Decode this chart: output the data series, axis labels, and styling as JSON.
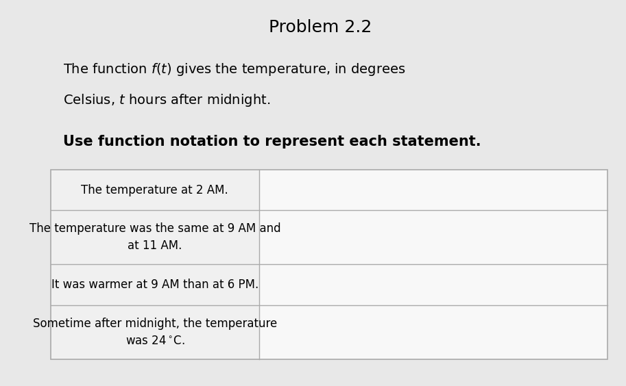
{
  "title": "Problem 2.2",
  "description_line1": "The function $f(t)$ gives the temperature, in degrees",
  "description_line2": "Celsius, $t$ hours after midnight.",
  "instruction": "Use function notation to represent each statement.",
  "background_color": "#e8e8e8",
  "table_bg": "#f0f0f0",
  "right_col_bg": "#f8f8f8",
  "border_color": "#aaaaaa",
  "title_fontsize": 18,
  "desc_fontsize": 14,
  "instruction_fontsize": 15,
  "table_fontsize": 12
}
